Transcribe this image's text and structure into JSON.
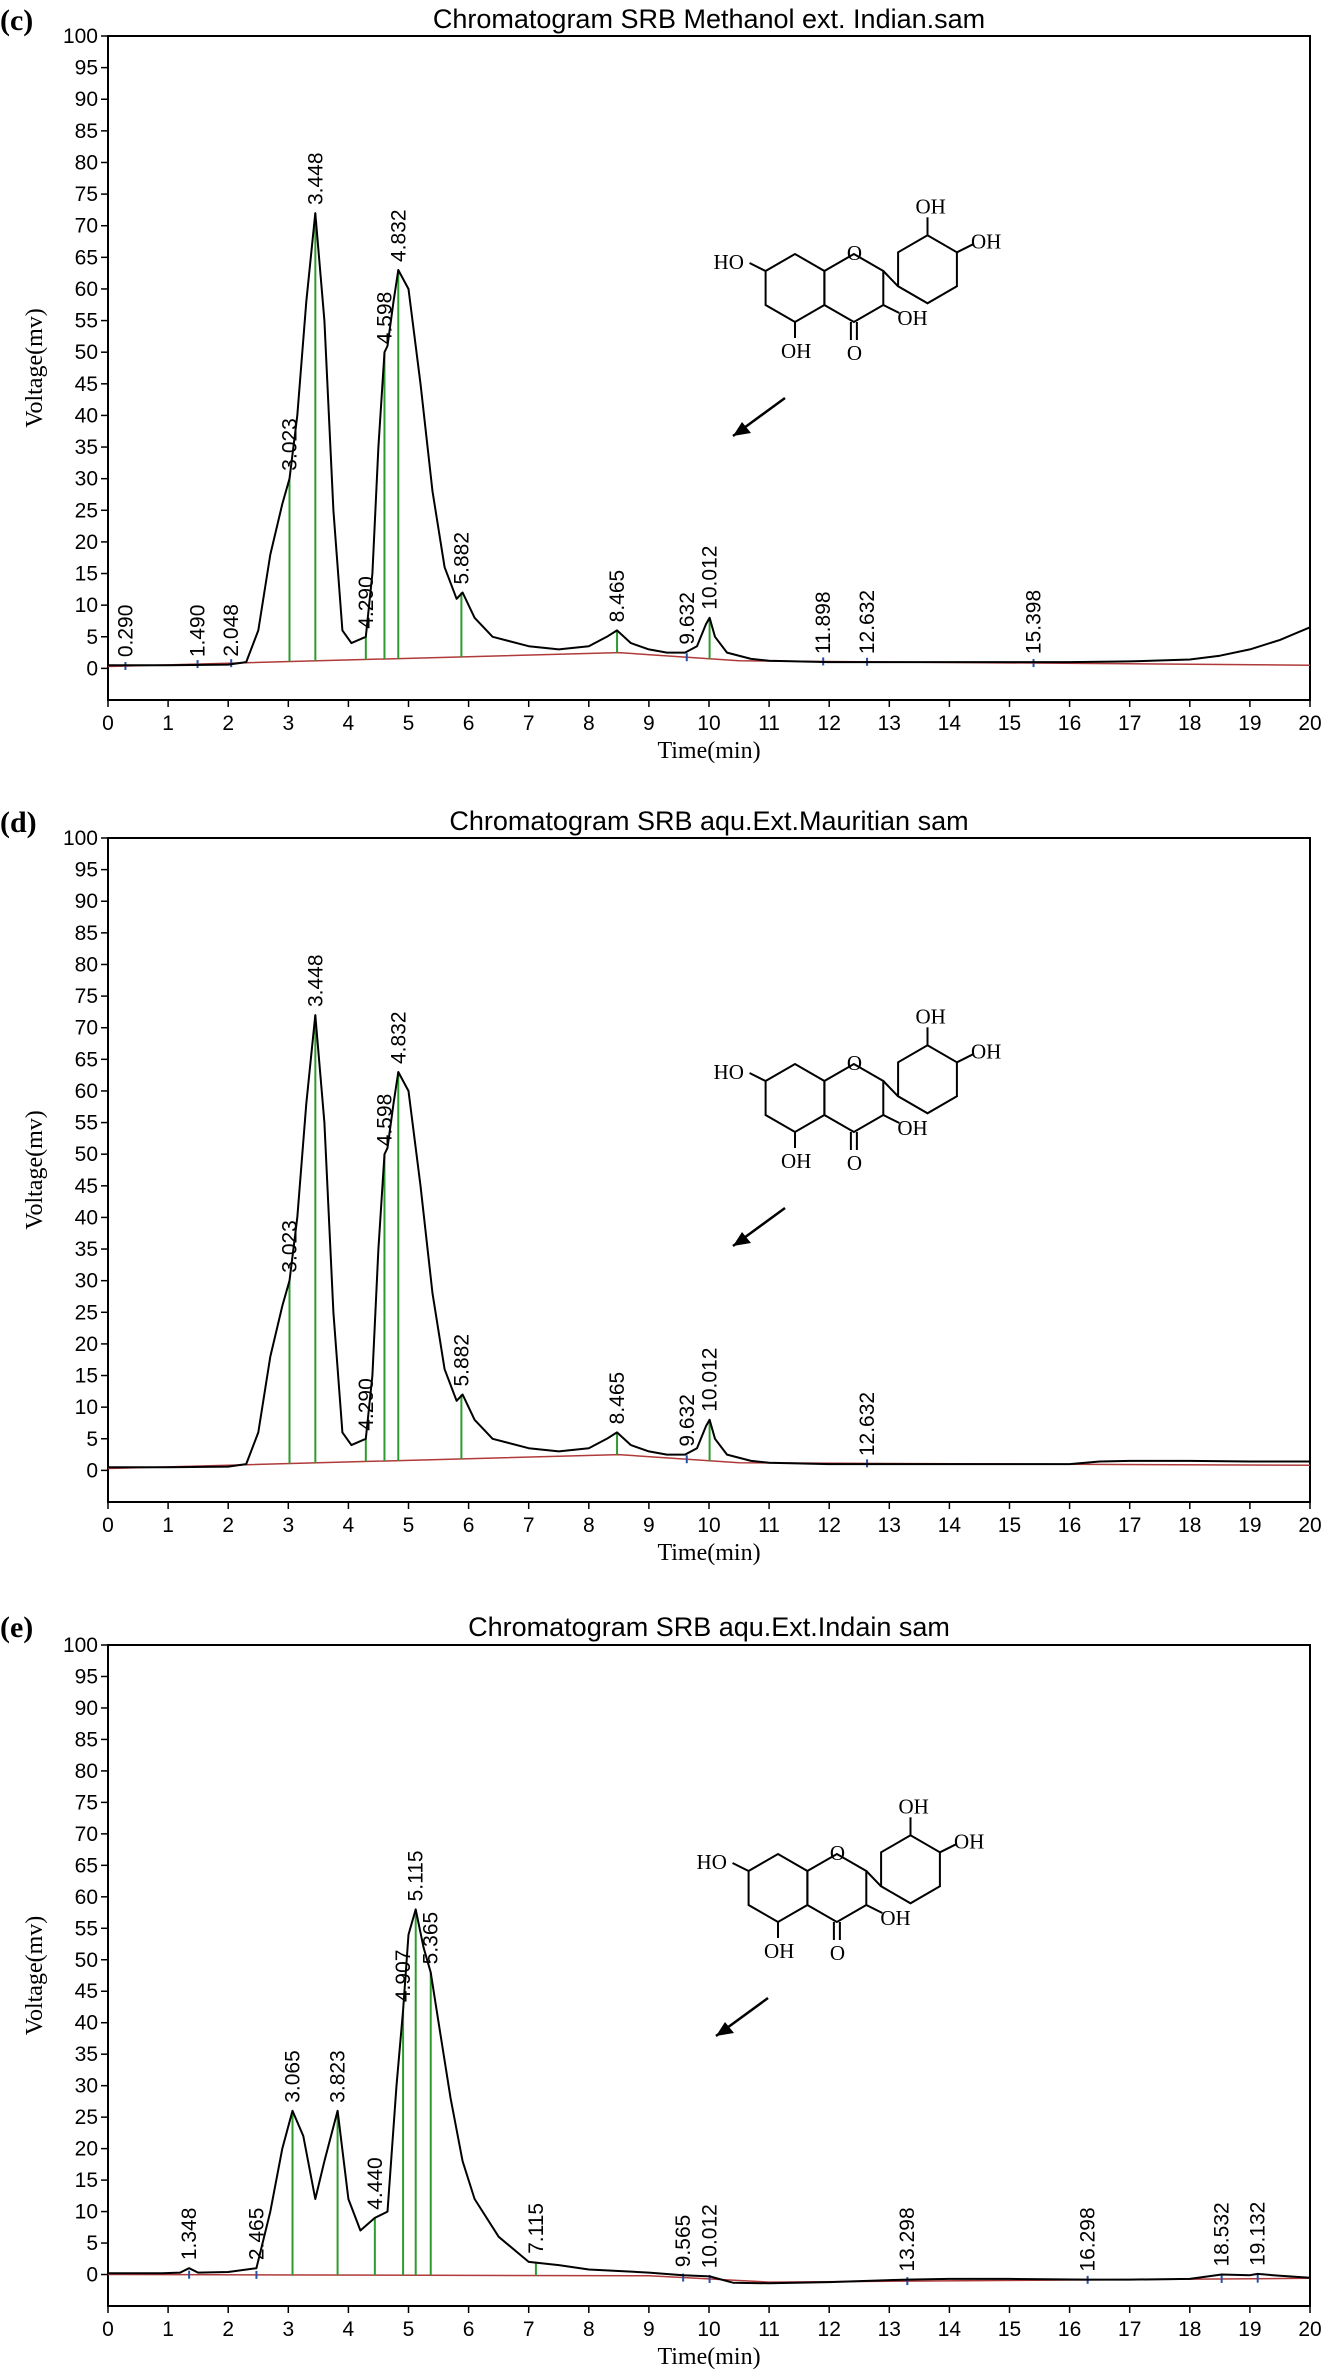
{
  "chart_data": [
    {
      "panel": "(c)",
      "type": "line",
      "title": "Chromatogram SRB Methanol ext. Indian.sam",
      "xlabel": "Time(min)",
      "ylabel": "Voltage(mv)",
      "xlim": [
        0,
        20
      ],
      "ylim": [
        -5,
        100
      ],
      "x_ticks": [
        "0",
        "1",
        "2",
        "3",
        "4",
        "5",
        "6",
        "7",
        "8",
        "9",
        "10",
        "11",
        "12",
        "13",
        "14",
        "15",
        "16",
        "17",
        "18",
        "19",
        "20"
      ],
      "y_ticks": [
        "0",
        "5",
        "10",
        "15",
        "20",
        "25",
        "30",
        "35",
        "40",
        "45",
        "50",
        "55",
        "60",
        "65",
        "70",
        "75",
        "80",
        "85",
        "90",
        "95",
        "100"
      ],
      "trace": {
        "x": [
          0,
          1,
          2,
          2.3,
          2.5,
          2.7,
          2.9,
          3.02,
          3.15,
          3.3,
          3.45,
          3.6,
          3.75,
          3.9,
          4.05,
          4.29,
          4.4,
          4.5,
          4.6,
          4.65,
          4.75,
          4.83,
          5.0,
          5.2,
          5.4,
          5.6,
          5.8,
          5.9,
          6.1,
          6.4,
          7.0,
          7.5,
          8.0,
          8.3,
          8.47,
          8.7,
          9.0,
          9.3,
          9.6,
          9.8,
          9.95,
          10.01,
          10.1,
          10.3,
          10.7,
          11.0,
          12.0,
          13.0,
          14.0,
          15.0,
          16.0,
          17.0,
          18.0,
          18.5,
          19.0,
          19.5,
          20.0
        ],
        "y": [
          0.5,
          0.5,
          0.6,
          1.0,
          6.0,
          18.0,
          26.0,
          30.0,
          40.0,
          58.0,
          72.0,
          55.0,
          25.0,
          6.0,
          4.0,
          5.0,
          15.0,
          35.0,
          50.0,
          51.0,
          58.0,
          63.0,
          60.0,
          45.0,
          28.0,
          16.0,
          11.0,
          12.0,
          8.0,
          5.0,
          3.5,
          3.0,
          3.5,
          5.0,
          6.0,
          4.0,
          3.0,
          2.5,
          2.5,
          3.5,
          7.0,
          8.0,
          5.0,
          2.5,
          1.5,
          1.2,
          1.0,
          1.0,
          1.0,
          1.0,
          1.0,
          1.1,
          1.4,
          2.0,
          3.0,
          4.5,
          6.5
        ]
      },
      "peaks": [
        {
          "rt": "0.290",
          "x": 0.29,
          "y": 0.5
        },
        {
          "rt": "1.490",
          "x": 1.49,
          "y": 0.5
        },
        {
          "rt": "2.048",
          "x": 2.05,
          "y": 0.6
        },
        {
          "rt": "3.023",
          "x": 3.02,
          "y": 30.0
        },
        {
          "rt": "3.448",
          "x": 3.45,
          "y": 72.0
        },
        {
          "rt": "4.290",
          "x": 4.29,
          "y": 5.0
        },
        {
          "rt": "4.598",
          "x": 4.6,
          "y": 50.0
        },
        {
          "rt": "4.832",
          "x": 4.83,
          "y": 63.0
        },
        {
          "rt": "5.882",
          "x": 5.88,
          "y": 12.0
        },
        {
          "rt": "8.465",
          "x": 8.47,
          "y": 6.0
        },
        {
          "rt": "9.632",
          "x": 9.63,
          "y": 2.5
        },
        {
          "rt": "10.012",
          "x": 10.01,
          "y": 8.0
        },
        {
          "rt": "11.898",
          "x": 11.9,
          "y": 1.0
        },
        {
          "rt": "12.632",
          "x": 12.63,
          "y": 1.0
        },
        {
          "rt": "15.398",
          "x": 15.4,
          "y": 1.0
        }
      ],
      "baseline": [
        [
          0,
          0.3
        ],
        [
          8.5,
          2.5
        ],
        [
          10.5,
          1.2
        ],
        [
          20,
          0.5
        ]
      ],
      "structure_labels": [
        "OH",
        "OH",
        "HO",
        "OH",
        "OH",
        "O",
        "O"
      ]
    },
    {
      "panel": "(d)",
      "type": "line",
      "title": "Chromatogram  SRB aqu.Ext.Mauritian sam",
      "xlabel": "Time(min)",
      "ylabel": "Voltage(mv)",
      "xlim": [
        0,
        20
      ],
      "ylim": [
        -5,
        100
      ],
      "x_ticks": [
        "0",
        "1",
        "2",
        "3",
        "4",
        "5",
        "6",
        "7",
        "8",
        "9",
        "10",
        "11",
        "12",
        "13",
        "14",
        "15",
        "16",
        "17",
        "18",
        "19",
        "20"
      ],
      "y_ticks": [
        "0",
        "5",
        "10",
        "15",
        "20",
        "25",
        "30",
        "35",
        "40",
        "45",
        "50",
        "55",
        "60",
        "65",
        "70",
        "75",
        "80",
        "85",
        "90",
        "95",
        "100"
      ],
      "trace": {
        "x": [
          0,
          1,
          2,
          2.3,
          2.5,
          2.7,
          2.9,
          3.02,
          3.15,
          3.3,
          3.45,
          3.6,
          3.75,
          3.9,
          4.05,
          4.29,
          4.4,
          4.5,
          4.6,
          4.65,
          4.75,
          4.83,
          5.0,
          5.2,
          5.4,
          5.6,
          5.8,
          5.9,
          6.1,
          6.4,
          7.0,
          7.5,
          8.0,
          8.3,
          8.47,
          8.7,
          9.0,
          9.3,
          9.6,
          9.8,
          9.95,
          10.01,
          10.1,
          10.3,
          10.7,
          11.0,
          12.0,
          13.0,
          14.0,
          15.0,
          16.0,
          16.5,
          17.0,
          18.0,
          19.0,
          20.0
        ],
        "y": [
          0.5,
          0.5,
          0.6,
          1.0,
          6.0,
          18.0,
          26.0,
          30.0,
          40.0,
          58.0,
          72.0,
          55.0,
          25.0,
          6.0,
          4.0,
          5.0,
          15.0,
          35.0,
          50.0,
          51.0,
          58.0,
          63.0,
          60.0,
          45.0,
          28.0,
          16.0,
          11.0,
          12.0,
          8.0,
          5.0,
          3.5,
          3.0,
          3.5,
          5.0,
          6.0,
          4.0,
          3.0,
          2.5,
          2.5,
          3.5,
          7.0,
          8.0,
          5.0,
          2.5,
          1.5,
          1.2,
          1.0,
          1.0,
          1.0,
          1.0,
          1.0,
          1.4,
          1.5,
          1.5,
          1.4,
          1.4
        ]
      },
      "peaks": [
        {
          "rt": "3.023",
          "x": 3.02,
          "y": 30.0
        },
        {
          "rt": "3.448",
          "x": 3.45,
          "y": 72.0
        },
        {
          "rt": "4.290",
          "x": 4.29,
          "y": 5.0
        },
        {
          "rt": "4.598",
          "x": 4.6,
          "y": 50.0
        },
        {
          "rt": "4.832",
          "x": 4.83,
          "y": 63.0
        },
        {
          "rt": "5.882",
          "x": 5.88,
          "y": 12.0
        },
        {
          "rt": "8.465",
          "x": 8.47,
          "y": 6.0
        },
        {
          "rt": "9.632",
          "x": 9.63,
          "y": 2.5
        },
        {
          "rt": "10.012",
          "x": 10.01,
          "y": 8.0
        },
        {
          "rt": "12.632",
          "x": 12.63,
          "y": 1.0
        }
      ],
      "baseline": [
        [
          0,
          0.3
        ],
        [
          8.5,
          2.5
        ],
        [
          10.5,
          1.2
        ],
        [
          20,
          0.8
        ]
      ],
      "structure_labels": [
        "OH",
        "OH",
        "HO",
        "OH",
        "OH",
        "O",
        "O"
      ]
    },
    {
      "panel": "(e)",
      "type": "line",
      "title": "Chromatogram  SRB aqu.Ext.Indain sam",
      "xlabel": "Time(min)",
      "ylabel": "Voltage(mv)",
      "xlim": [
        0,
        20
      ],
      "ylim": [
        -5,
        100
      ],
      "x_ticks": [
        "0",
        "1",
        "2",
        "3",
        "4",
        "5",
        "6",
        "7",
        "8",
        "9",
        "10",
        "11",
        "12",
        "13",
        "14",
        "15",
        "16",
        "17",
        "18",
        "19",
        "20"
      ],
      "y_ticks": [
        "0",
        "5",
        "10",
        "15",
        "20",
        "25",
        "30",
        "35",
        "40",
        "45",
        "50",
        "55",
        "60",
        "65",
        "70",
        "75",
        "80",
        "85",
        "90",
        "95",
        "100"
      ],
      "trace": {
        "x": [
          0,
          0.9,
          1.2,
          1.35,
          1.5,
          2.0,
          2.47,
          2.7,
          2.9,
          3.07,
          3.25,
          3.45,
          3.6,
          3.82,
          4.0,
          4.2,
          4.44,
          4.65,
          4.8,
          4.91,
          5.0,
          5.12,
          5.25,
          5.37,
          5.5,
          5.7,
          5.9,
          6.1,
          6.5,
          7.0,
          7.5,
          8.0,
          9.0,
          9.57,
          10.01,
          10.4,
          11.0,
          12.0,
          13.3,
          14.0,
          15.0,
          16.3,
          17.0,
          18.0,
          18.53,
          19.0,
          19.13,
          19.5,
          20.0
        ],
        "y": [
          0.2,
          0.2,
          0.3,
          1.0,
          0.3,
          0.4,
          1.0,
          10.0,
          20.0,
          26.0,
          22.0,
          12.0,
          18.0,
          26.0,
          12.0,
          7.0,
          9.0,
          10.0,
          30.0,
          42.0,
          54.0,
          58.0,
          52.0,
          48.0,
          40.0,
          28.0,
          18.0,
          12.0,
          6.0,
          2.0,
          1.5,
          0.8,
          0.3,
          -0.1,
          -0.3,
          -1.3,
          -1.4,
          -1.2,
          -0.8,
          -0.7,
          -0.7,
          -0.8,
          -0.8,
          -0.7,
          0.0,
          -0.1,
          0.1,
          -0.2,
          -0.5
        ]
      },
      "peaks": [
        {
          "rt": "1.348",
          "x": 1.35,
          "y": 1.0
        },
        {
          "rt": "2.465",
          "x": 2.47,
          "y": 1.0
        },
        {
          "rt": "3.065",
          "x": 3.07,
          "y": 26.0
        },
        {
          "rt": "3.823",
          "x": 3.82,
          "y": 26.0
        },
        {
          "rt": "4.440",
          "x": 4.44,
          "y": 9.0
        },
        {
          "rt": "4.907",
          "x": 4.91,
          "y": 42.0
        },
        {
          "rt": "5.115",
          "x": 5.12,
          "y": 58.0
        },
        {
          "rt": "5.365",
          "x": 5.37,
          "y": 48.0
        },
        {
          "rt": "7.115",
          "x": 7.12,
          "y": 2.0
        },
        {
          "rt": "9.565",
          "x": 9.57,
          "y": -0.1
        },
        {
          "rt": "10.012",
          "x": 10.01,
          "y": -0.3
        },
        {
          "rt": "13.298",
          "x": 13.3,
          "y": -0.8
        },
        {
          "rt": "16.298",
          "x": 16.3,
          "y": -0.8
        },
        {
          "rt": "18.532",
          "x": 18.53,
          "y": 0.0
        },
        {
          "rt": "19.132",
          "x": 19.13,
          "y": 0.1
        }
      ],
      "baseline": [
        [
          0,
          0.0
        ],
        [
          9.0,
          -0.2
        ],
        [
          11.0,
          -1.2
        ],
        [
          20,
          -0.6
        ]
      ],
      "structure_labels": [
        "OH",
        "OH",
        "HO",
        "OH",
        "OH",
        "O",
        "O"
      ]
    }
  ],
  "colors": {
    "trace": "#000000",
    "peak_marker": "#2e9b2e",
    "baseline": "#b03a3a",
    "tick_marker": "#2a4fa8"
  }
}
